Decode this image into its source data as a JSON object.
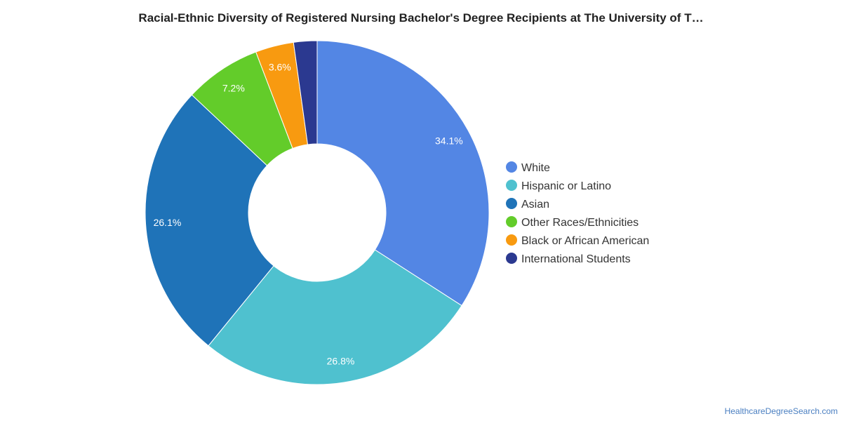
{
  "chart_data": {
    "type": "pie",
    "donut": true,
    "title": "Racial-Ethnic Diversity of Registered Nursing Bachelor's Degree Recipients at The University of T…",
    "categories": [
      "White",
      "Hispanic or Latino",
      "Asian",
      "Other Races/Ethnicities",
      "Black or African American",
      "International Students"
    ],
    "values": [
      34.1,
      26.8,
      26.1,
      7.2,
      3.6,
      2.2
    ],
    "labels": [
      "34.1%",
      "26.8%",
      "26.1%",
      "7.2%",
      "3.6%",
      ""
    ],
    "colors": [
      "#5386e4",
      "#4fc1cf",
      "#1f73b8",
      "#63cc2a",
      "#f89a10",
      "#2b3990"
    ],
    "legend_position": "right"
  },
  "footer": {
    "source": "HealthcareDegreeSearch.com"
  }
}
